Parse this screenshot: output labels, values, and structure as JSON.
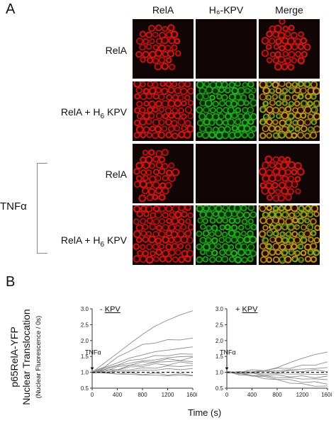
{
  "panel_a": {
    "letter": "A",
    "columns": [
      "RelA",
      "H₆-KPV",
      "Merge"
    ],
    "rows": [
      {
        "label_main": "RelA",
        "label_sub": "",
        "label_tail": ""
      },
      {
        "label_main": "RelA + H",
        "label_sub": "6",
        "label_tail": " KPV"
      },
      {
        "label_main": "RelA",
        "label_sub": "",
        "label_tail": ""
      },
      {
        "label_main": "RelA + H",
        "label_sub": "6",
        "label_tail": " KPV"
      }
    ],
    "treatment_group": "TNFα",
    "colors": {
      "rela": "#d81818",
      "kpv": "#22b022",
      "merge": "#b8a020",
      "background": "#0e0303"
    }
  },
  "panel_b": {
    "letter": "B",
    "ylabel_line1": "p65RelA-YFP",
    "ylabel_line2": "Nuclear Translocation",
    "ylabel_line3": "(Nuclear Fluorescence / 0s)",
    "xlabel": "Time (s)",
    "left_title_prefix": "- ",
    "left_title": "KPV",
    "right_title_prefix": "+ ",
    "right_title": "KPV",
    "annotation": "TNFα"
  },
  "chart_data": [
    {
      "type": "line",
      "title": "- KPV",
      "xlabel": "",
      "ylabel": "",
      "xlim": [
        0,
        1600
      ],
      "ylim": [
        0.5,
        3.0
      ],
      "x_ticks": [
        0,
        400,
        800,
        1200,
        1600
      ],
      "y_ticks": [
        0.5,
        1.0,
        1.5,
        2.0,
        2.5,
        3.0
      ],
      "x": [
        0,
        200,
        400,
        600,
        800,
        1000,
        1200,
        1400,
        1600
      ],
      "series": [
        {
          "values": [
            1.0,
            1.3,
            1.6,
            1.9,
            2.2,
            2.45,
            2.65,
            2.8,
            2.95
          ]
        },
        {
          "values": [
            1.0,
            1.2,
            1.45,
            1.7,
            1.85,
            1.95,
            2.0,
            2.05,
            2.05
          ]
        },
        {
          "values": [
            1.0,
            1.15,
            1.3,
            1.45,
            1.55,
            1.65,
            1.7,
            1.75,
            1.8
          ]
        },
        {
          "values": [
            1.0,
            1.1,
            1.25,
            1.35,
            1.45,
            1.5,
            1.55,
            1.55,
            1.6
          ]
        },
        {
          "values": [
            1.0,
            1.1,
            1.2,
            1.3,
            1.35,
            1.4,
            1.45,
            1.5,
            1.5
          ]
        },
        {
          "values": [
            1.0,
            1.05,
            1.15,
            1.25,
            1.3,
            1.35,
            1.4,
            1.4,
            1.45
          ]
        },
        {
          "values": [
            1.0,
            1.05,
            1.1,
            1.2,
            1.25,
            1.3,
            1.35,
            1.35,
            1.35
          ]
        },
        {
          "values": [
            1.0,
            1.05,
            1.1,
            1.15,
            1.2,
            1.25,
            1.25,
            1.3,
            1.3
          ]
        },
        {
          "values": [
            1.0,
            1.02,
            1.05,
            1.1,
            1.12,
            1.15,
            1.18,
            1.2,
            1.2
          ]
        },
        {
          "values": [
            1.0,
            1.0,
            1.02,
            1.05,
            1.05,
            1.08,
            1.1,
            1.1,
            1.1
          ]
        },
        {
          "values": [
            1.0,
            0.98,
            0.97,
            0.96,
            0.95,
            0.95,
            0.94,
            0.93,
            0.93
          ]
        },
        {
          "values": [
            1.0,
            0.97,
            0.95,
            0.93,
            0.92,
            0.9,
            0.9,
            0.9,
            0.9
          ]
        },
        {
          "values": [
            1.0,
            1.0,
            1.0,
            1.0,
            1.0,
            1.0,
            1.0,
            1.0,
            1.0
          ],
          "dashed": true
        }
      ]
    },
    {
      "type": "line",
      "title": "+ KPV",
      "xlabel": "",
      "ylabel": "",
      "xlim": [
        0,
        1600
      ],
      "ylim": [
        0.5,
        3.0
      ],
      "x_ticks": [
        0,
        400,
        800,
        1200,
        1600
      ],
      "y_ticks": [
        0.5,
        1.0,
        1.5,
        2.0,
        2.5,
        3.0
      ],
      "x": [
        0,
        200,
        400,
        600,
        800,
        1000,
        1200,
        1400,
        1600
      ],
      "series": [
        {
          "values": [
            1.0,
            1.0,
            1.02,
            1.05,
            1.15,
            1.3,
            1.45,
            1.55,
            1.65
          ]
        },
        {
          "values": [
            1.0,
            1.02,
            1.05,
            1.08,
            1.1,
            1.15,
            1.2,
            1.25,
            1.3
          ]
        },
        {
          "values": [
            1.0,
            1.0,
            1.02,
            1.03,
            1.05,
            1.08,
            1.1,
            1.12,
            1.15
          ]
        },
        {
          "values": [
            1.0,
            1.0,
            1.0,
            1.02,
            1.02,
            1.03,
            1.05,
            1.05,
            1.05
          ]
        },
        {
          "values": [
            1.0,
            0.98,
            0.97,
            0.96,
            0.95,
            0.95,
            0.94,
            0.94,
            0.93
          ]
        },
        {
          "values": [
            1.0,
            0.97,
            0.95,
            0.93,
            0.9,
            0.88,
            0.86,
            0.85,
            0.85
          ]
        },
        {
          "values": [
            1.0,
            0.96,
            0.92,
            0.88,
            0.85,
            0.82,
            0.8,
            0.78,
            0.78
          ]
        },
        {
          "values": [
            1.0,
            0.95,
            0.9,
            0.85,
            0.8,
            0.75,
            0.7,
            0.68,
            0.65
          ]
        },
        {
          "values": [
            1.0,
            0.94,
            0.88,
            0.82,
            0.75,
            0.68,
            0.62,
            0.58,
            0.55
          ]
        },
        {
          "values": [
            1.0,
            1.0,
            1.0,
            1.0,
            1.0,
            1.0,
            1.0,
            1.0,
            1.0
          ],
          "dashed": true
        }
      ]
    }
  ]
}
